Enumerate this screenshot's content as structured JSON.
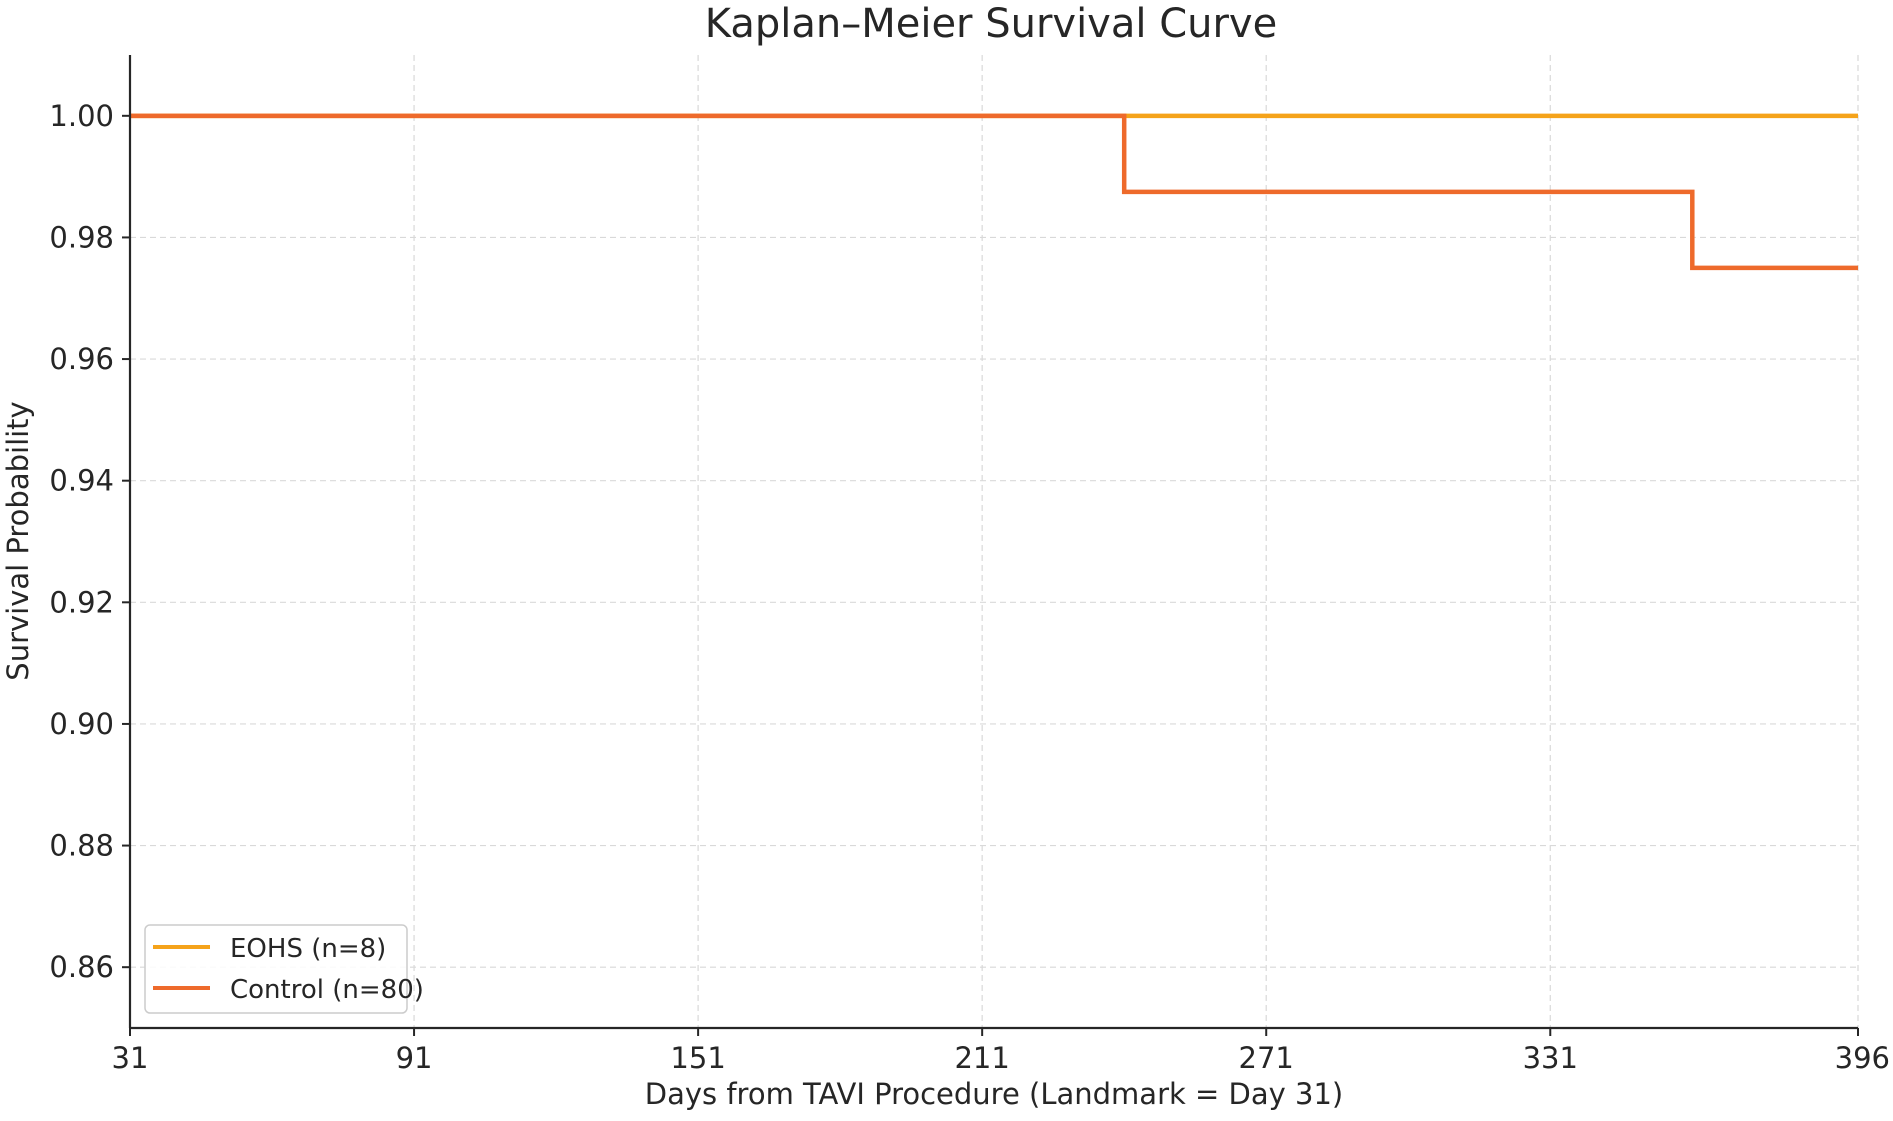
{
  "chart_data": {
    "type": "line",
    "step": true,
    "title": "Kaplan–Meier Survival Curve",
    "xlabel": "Days from TAVI Procedure (Landmark = Day 31)",
    "ylabel": "Survival Probability",
    "xlim": [
      31,
      396
    ],
    "ylim": [
      0.85,
      1.01
    ],
    "xticks": [
      31,
      91,
      151,
      211,
      271,
      331,
      396
    ],
    "xtick_labels": [
      "31",
      "91",
      "151",
      "211",
      "271",
      "331",
      "396"
    ],
    "yticks": [
      0.86,
      0.88,
      0.9,
      0.92,
      0.94,
      0.96,
      0.98,
      1.0
    ],
    "ytick_labels": [
      "0.86",
      "0.88",
      "0.90",
      "0.92",
      "0.94",
      "0.96",
      "0.98",
      "1.00"
    ],
    "grid": true,
    "legend_position": "bottom-left",
    "series": [
      {
        "name": "EOHS (n=8)",
        "color": "#f5a31a",
        "x": [
          31,
          396
        ],
        "y": [
          1.0,
          1.0
        ]
      },
      {
        "name": "Control (n=80)",
        "color": "#ee6a2b",
        "x": [
          31,
          241,
          361,
          396
        ],
        "y": [
          1.0,
          0.9875,
          0.975,
          0.975
        ]
      }
    ]
  }
}
